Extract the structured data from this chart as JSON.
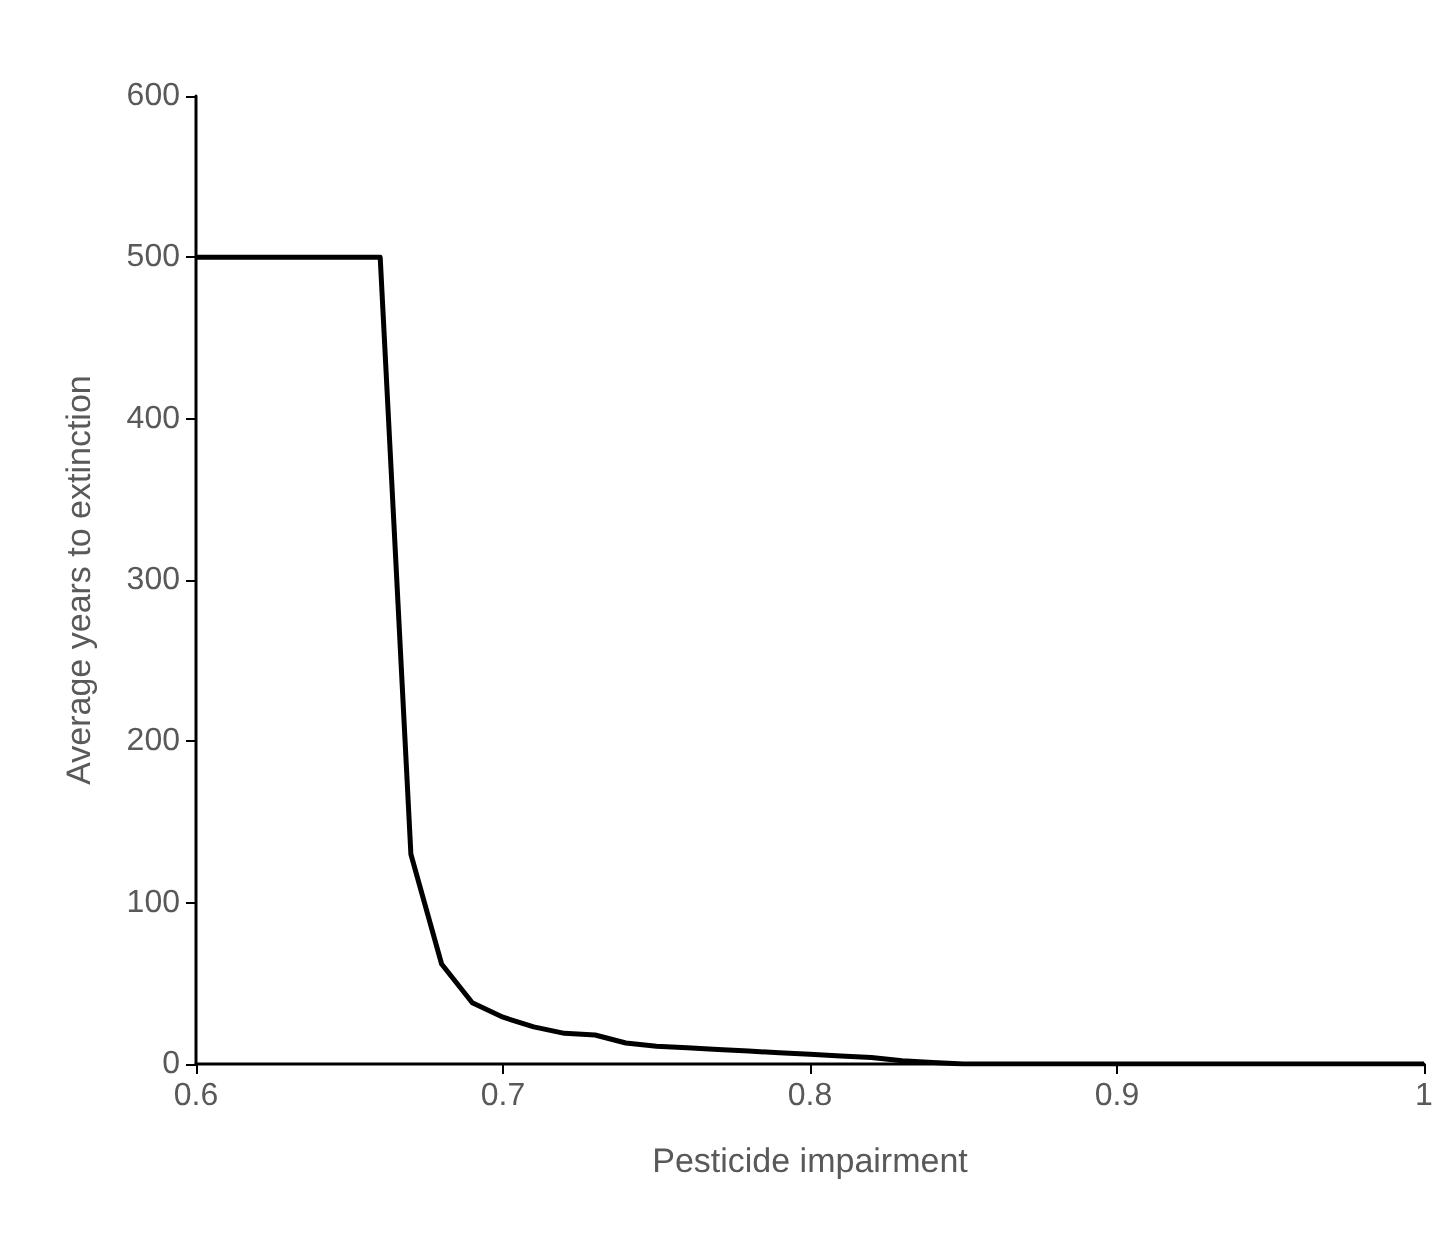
{
  "chart_data": {
    "type": "line",
    "xlabel": "Pesticide impairment",
    "ylabel": "Average years to extinction",
    "x": [
      0.6,
      0.61,
      0.62,
      0.63,
      0.64,
      0.65,
      0.66,
      0.67,
      0.68,
      0.69,
      0.7,
      0.71,
      0.72,
      0.73,
      0.74,
      0.75,
      0.76,
      0.77,
      0.78,
      0.79,
      0.8,
      0.81,
      0.82,
      0.83,
      0.84,
      0.85,
      0.86,
      0.87,
      0.88,
      0.89,
      0.9,
      0.91,
      0.92,
      0.93,
      0.94,
      0.95,
      0.96,
      0.97,
      0.98,
      0.99,
      1.0
    ],
    "series": [
      {
        "color": "#000000",
        "values": [
          500,
          500,
          500,
          500,
          500,
          500,
          500,
          130,
          62,
          38,
          29,
          23,
          19,
          18,
          13,
          11,
          10,
          9,
          8,
          7,
          6,
          5,
          4,
          2,
          1,
          0,
          0,
          0,
          0,
          0,
          0,
          0,
          0,
          0,
          0,
          0,
          0,
          0,
          0,
          0,
          0
        ]
      }
    ],
    "xlim": [
      0.6,
      1
    ],
    "xticks": [
      0.6,
      0.7,
      0.8,
      0.9,
      1
    ],
    "ylim": [
      0,
      600
    ],
    "yticks": [
      0,
      100,
      200,
      300,
      400,
      500,
      600
    ],
    "grid": false,
    "marker": "none",
    "line_style": "solid"
  }
}
